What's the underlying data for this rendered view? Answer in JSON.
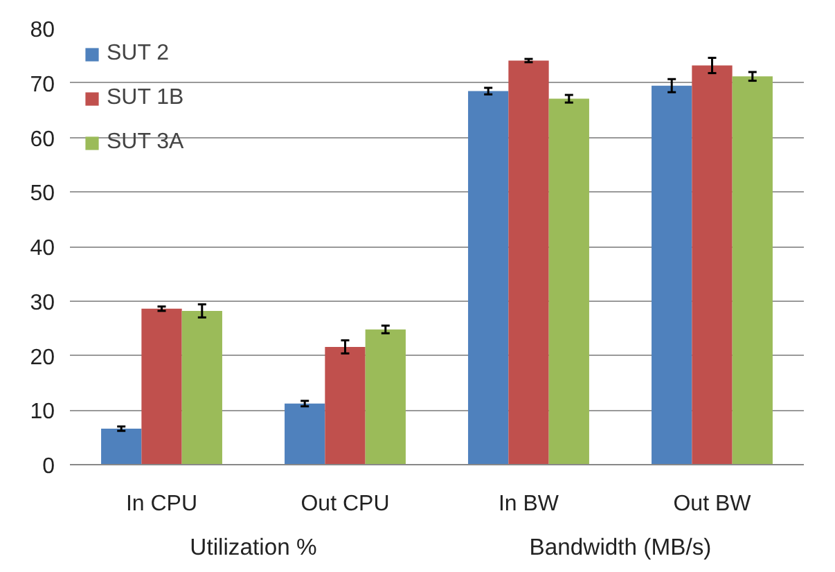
{
  "chart_data": {
    "type": "bar",
    "categories": [
      "In CPU",
      "Out CPU",
      "In BW",
      "Out BW"
    ],
    "series": [
      {
        "name": "SUT 2",
        "color": "#4f81bd",
        "values": [
          6.6,
          11.2,
          68.5,
          69.5
        ],
        "errors": [
          0.4,
          0.5,
          0.6,
          1.2
        ]
      },
      {
        "name": "SUT 1B",
        "color": "#c0504d",
        "values": [
          28.6,
          21.6,
          74.1,
          73.2
        ],
        "errors": [
          0.4,
          1.2,
          0.3,
          1.4
        ]
      },
      {
        "name": "SUT 3A",
        "color": "#9bbb59",
        "values": [
          28.2,
          24.8,
          67.1,
          71.2
        ],
        "errors": [
          1.2,
          0.7,
          0.7,
          0.8
        ]
      }
    ],
    "annotations": [
      "Utilization %",
      "Bandwidth (MB/s)"
    ],
    "ylim": [
      0,
      80
    ],
    "yticks": [
      0,
      10,
      20,
      30,
      40,
      50,
      60,
      70,
      80
    ],
    "grid": "y",
    "legend": "top left"
  }
}
